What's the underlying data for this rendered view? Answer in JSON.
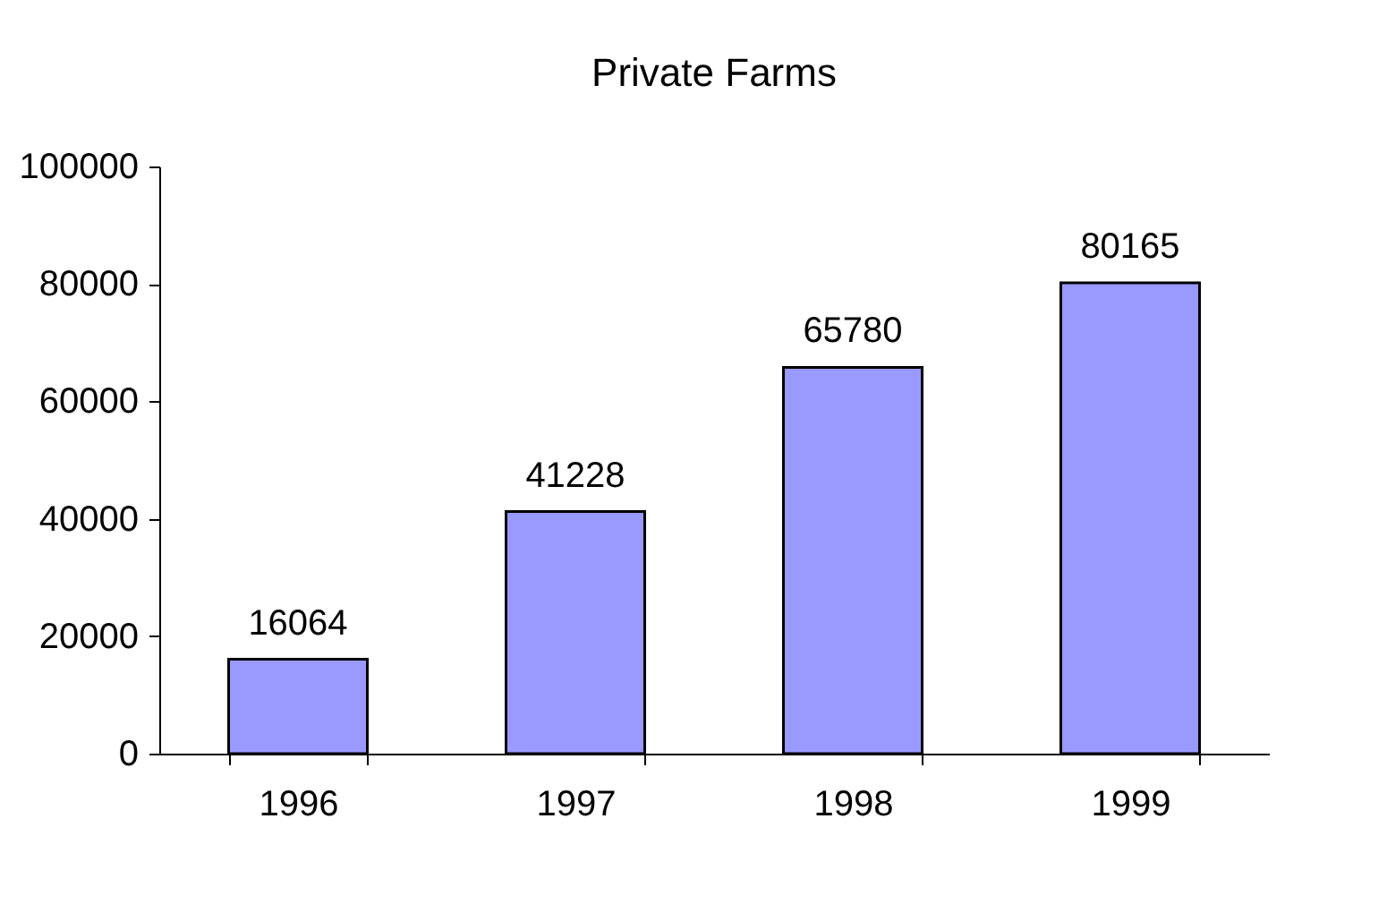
{
  "chart_data": {
    "type": "bar",
    "title": "Private Farms",
    "categories": [
      "1996",
      "1997",
      "1998",
      "1999"
    ],
    "values": [
      16064,
      41228,
      65780,
      80165
    ],
    "color": "#9999ff",
    "ylim": [
      0,
      100000
    ],
    "yticks": [
      0,
      20000,
      40000,
      60000,
      80000,
      100000
    ],
    "grid": false,
    "data_labels": true
  }
}
